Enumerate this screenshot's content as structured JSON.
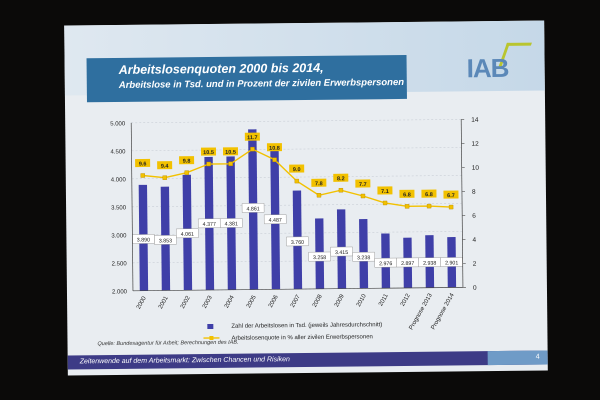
{
  "slide": {
    "title": "Arbeitslosenquoten  2000 bis 2014,",
    "subtitle": "Arbeitslose in Tsd. und in Prozent der zivilen Erwerbspersonen",
    "logo_text": "IAB",
    "source": "Quelle: Bundesagentur für Arbeit; Berechnungen des IAB.",
    "footer_text": "Zeitenwende auf dem Arbeitsmarkt: Zwischen Chancen und Risiken",
    "page_number": "4"
  },
  "colors": {
    "bar": "#3f3fa8",
    "line": "#f2c100",
    "title_band": "#2f6f9f",
    "footer": "#3d3b86"
  },
  "chart_data": {
    "type": "bar",
    "categories": [
      "2000",
      "2001",
      "2002",
      "2003",
      "2004",
      "2005",
      "2006",
      "2007",
      "2008",
      "2009",
      "2010",
      "2011",
      "2012",
      "Prognose 2013",
      "Prognose 2014"
    ],
    "series": [
      {
        "name": "Zahl der Arbeitslosen in Tsd. (jeweils Jahresdurchschnitt)",
        "type": "bar",
        "axis": "left",
        "values": [
          3890,
          3853,
          4061,
          4377,
          4381,
          4861,
          4487,
          3760,
          3258,
          3415,
          3238,
          2976,
          2897,
          2938,
          2901
        ],
        "labels": [
          "3.890",
          "3.853",
          "4.061",
          "4.377",
          "4.381",
          "4.861",
          "4.487",
          "3.760",
          "3.258",
          "3.415",
          "3.238",
          "2.976",
          "2.897",
          "2.938",
          "2.901"
        ]
      },
      {
        "name": "Arbeitslosenquote in % aller zivilen Erwerbspersonen",
        "type": "line",
        "axis": "right",
        "values": [
          9.6,
          9.4,
          9.8,
          10.5,
          10.5,
          11.7,
          10.8,
          9.0,
          7.8,
          8.2,
          7.7,
          7.1,
          6.8,
          6.8,
          6.7
        ],
        "labels": [
          "9.6",
          "9.4",
          "9.8",
          "10.5",
          "10.5",
          "11.7",
          "10.8",
          "9.0",
          "7.8",
          "8.2",
          "7.7",
          "7.1",
          "6.8",
          "6.8",
          "6.7"
        ]
      }
    ],
    "y_left": {
      "min": 2000,
      "max": 5000,
      "ticks": [
        2000,
        2500,
        3000,
        3500,
        4000,
        4500,
        5000
      ],
      "tick_labels": [
        "2.000",
        "2.500",
        "3.000",
        "3.500",
        "4.000",
        "4.500",
        "5.000"
      ]
    },
    "y_right": {
      "min": 0,
      "max": 14,
      "ticks": [
        0,
        2,
        4,
        6,
        8,
        10,
        12,
        14
      ],
      "tick_labels": [
        "0",
        "2",
        "4",
        "6",
        "8",
        "10",
        "12",
        "14"
      ]
    },
    "grid": true,
    "legend_position": "bottom"
  }
}
